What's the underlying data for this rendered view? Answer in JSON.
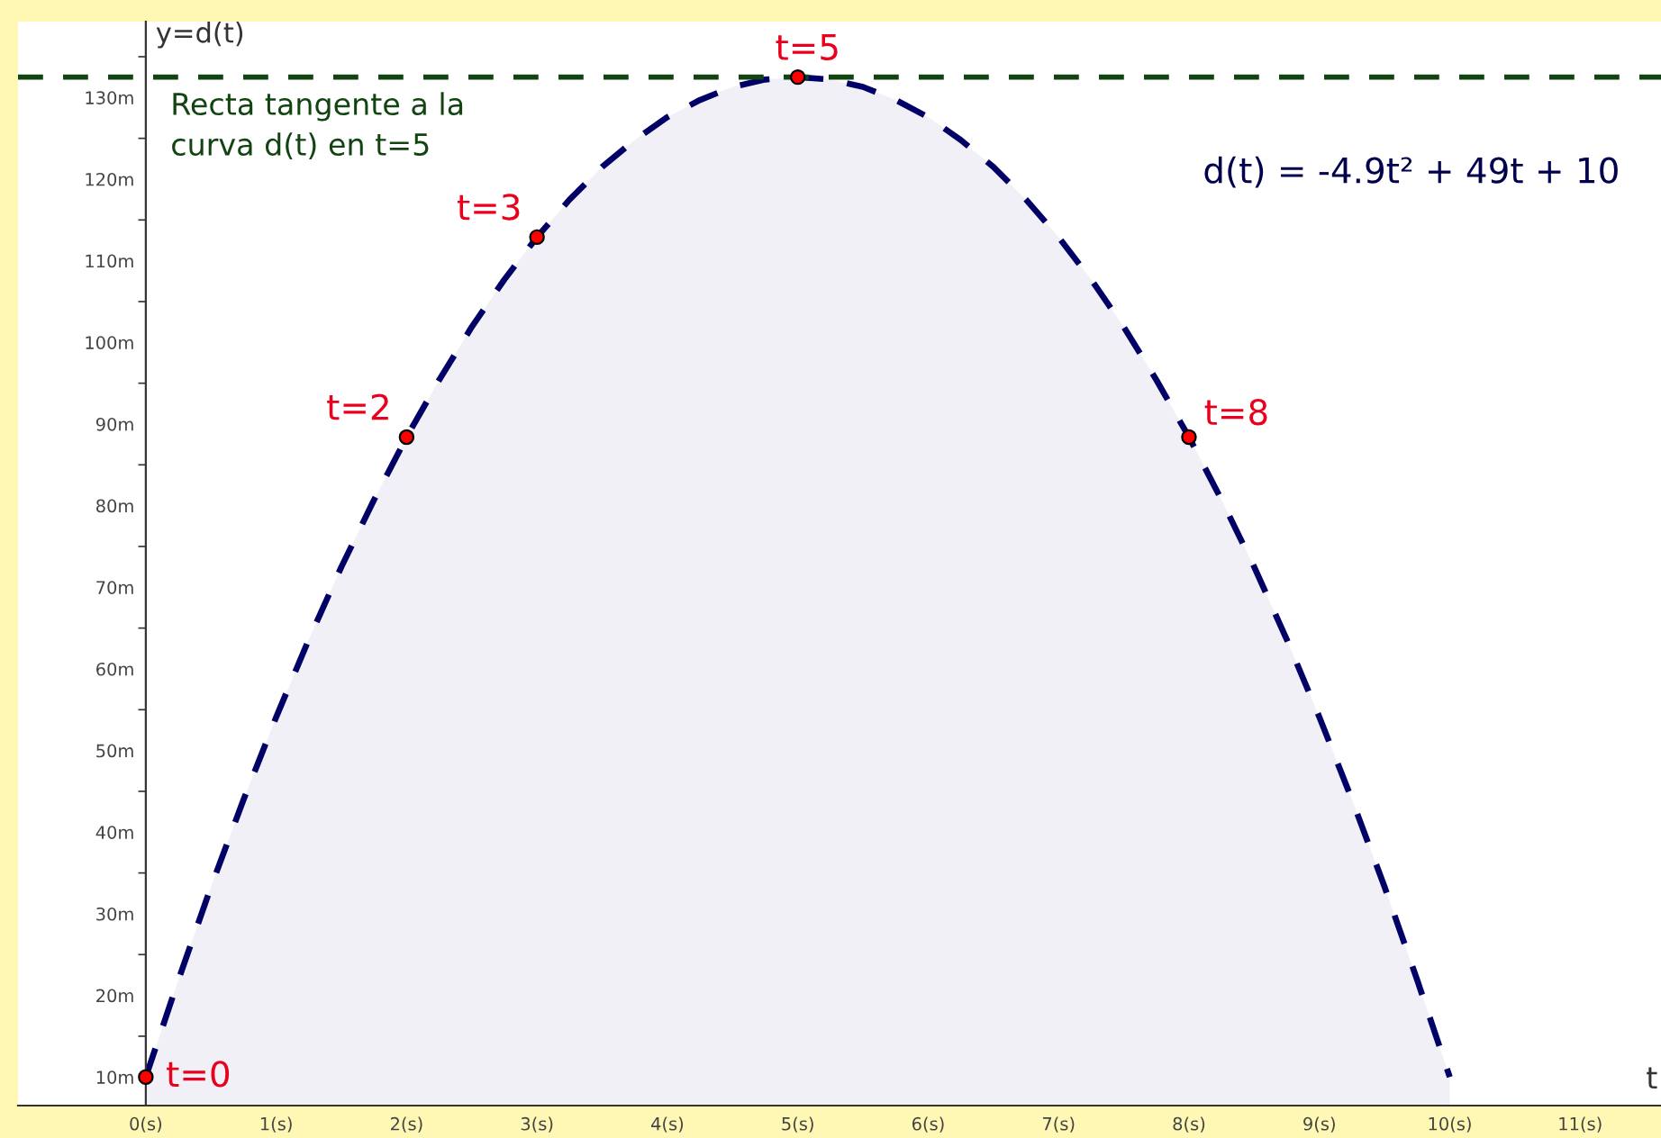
{
  "chart_data": {
    "type": "area",
    "xlabel": "t",
    "ylabel": "y=d(t)",
    "x": [
      0,
      0.25,
      0.5,
      0.75,
      1,
      1.25,
      1.5,
      1.75,
      2,
      2.25,
      2.5,
      2.75,
      3,
      3.25,
      3.5,
      3.75,
      4,
      4.25,
      4.5,
      4.75,
      5,
      5.25,
      5.5,
      5.75,
      6,
      6.25,
      6.5,
      6.75,
      7,
      7.25,
      7.5,
      7.75,
      8,
      8.25,
      8.5,
      8.75,
      9,
      9.25,
      9.5,
      9.75,
      10
    ],
    "series": [
      {
        "color": "#000066",
        "line_style": "dashed",
        "values": [
          10,
          21.9,
          33.3,
          44.0,
          54.1,
          63.6,
          72.5,
          80.7,
          88.4,
          95.4,
          101.9,
          107.7,
          112.9,
          117.5,
          121.5,
          124.8,
          127.6,
          129.7,
          131.3,
          132.2,
          132.5,
          132.2,
          131.3,
          129.7,
          127.6,
          124.8,
          121.5,
          117.5,
          112.9,
          107.7,
          101.9,
          95.4,
          88.4,
          80.7,
          72.5,
          63.6,
          54.1,
          44.0,
          33.3,
          21.9,
          10
        ]
      },
      {
        "type": "scatter",
        "color": "#ff0000",
        "marker": "circle",
        "x": [
          0,
          2,
          3,
          5,
          8
        ],
        "values": [
          10,
          88.4,
          112.9,
          132.5,
          88.4
        ]
      }
    ],
    "xlim": [
      -0.98,
      11.62
    ],
    "ylim": [
      6.5,
      139.3
    ],
    "xticks": [
      {
        "value": 0,
        "label": "0(s)"
      },
      {
        "value": 1,
        "label": "1(s)"
      },
      {
        "value": 2,
        "label": "2(s)"
      },
      {
        "value": 3,
        "label": "3(s)"
      },
      {
        "value": 4,
        "label": "4(s)"
      },
      {
        "value": 5,
        "label": "5(s)"
      },
      {
        "value": 6,
        "label": "6(s)"
      },
      {
        "value": 7,
        "label": "7(s)"
      },
      {
        "value": 8,
        "label": "8(s)"
      },
      {
        "value": 9,
        "label": "9(s)"
      },
      {
        "value": 10,
        "label": "10(s)"
      },
      {
        "value": 11,
        "label": "11(s)"
      }
    ],
    "yticks": [
      {
        "value": 10,
        "label": "10m"
      },
      {
        "value": 15,
        "label": null
      },
      {
        "value": 20,
        "label": "20m"
      },
      {
        "value": 25,
        "label": null
      },
      {
        "value": 30,
        "label": "30m"
      },
      {
        "value": 35,
        "label": null
      },
      {
        "value": 40,
        "label": "40m"
      },
      {
        "value": 45,
        "label": null
      },
      {
        "value": 50,
        "label": "50m"
      },
      {
        "value": 55,
        "label": null
      },
      {
        "value": 60,
        "label": "60m"
      },
      {
        "value": 65,
        "label": null
      },
      {
        "value": 70,
        "label": "70m"
      },
      {
        "value": 75,
        "label": null
      },
      {
        "value": 80,
        "label": "80m"
      },
      {
        "value": 85,
        "label": null
      },
      {
        "value": 90,
        "label": "90m"
      },
      {
        "value": 95,
        "label": null
      },
      {
        "value": 100,
        "label": "100m"
      },
      {
        "value": 105,
        "label": null
      },
      {
        "value": 110,
        "label": "110m"
      },
      {
        "value": 115,
        "label": null
      },
      {
        "value": 120,
        "label": "120m"
      },
      {
        "value": 125,
        "label": null
      },
      {
        "value": 130,
        "label": "130m"
      },
      {
        "value": 135,
        "label": null
      }
    ],
    "ref_lines": [
      {
        "axis": "y",
        "value": 132.5,
        "color": "#114411",
        "line_style": "dashed"
      }
    ],
    "annotations": [
      "Recta tangente a la\ncurva d(t) en t=5",
      {
        "text": "t=0",
        "x": 0,
        "y": 10
      },
      {
        "text": "t=2",
        "x": 2,
        "y": 88.4
      },
      {
        "text": "t=3",
        "x": 3,
        "y": 112.9
      },
      {
        "text": "t=5",
        "x": 5,
        "y": 132.5
      },
      {
        "text": "t=8",
        "x": 8,
        "y": 88.4
      },
      "d(t) = -4.9t² + 49t + 10"
    ],
    "grid": false,
    "legend": false
  }
}
